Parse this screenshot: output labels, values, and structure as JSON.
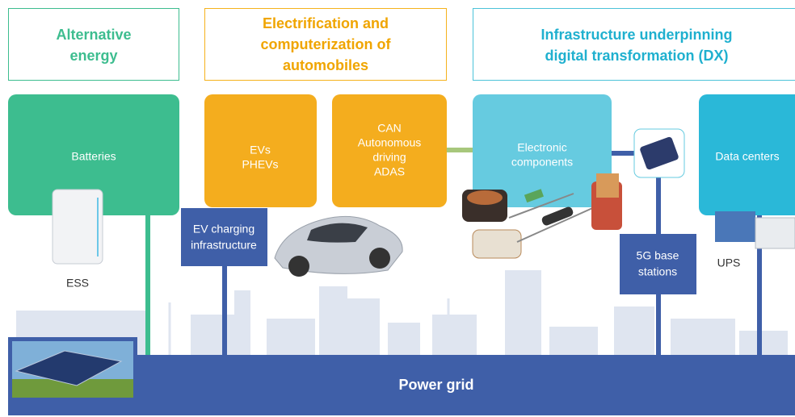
{
  "categories": [
    {
      "lines": [
        "Alternative",
        "energy"
      ]
    },
    {
      "lines": [
        "Electrification and",
        "computerization of",
        "automobiles"
      ]
    },
    {
      "lines": [
        "Infrastructure underpinning",
        "digital transformation (DX)"
      ]
    }
  ],
  "boxes": [
    {
      "lines": [
        "Batteries"
      ]
    },
    {
      "lines": [
        "EVs",
        "PHEVs"
      ]
    },
    {
      "lines": [
        "CAN",
        "Autonomous",
        "driving",
        "ADAS"
      ]
    },
    {
      "lines": [
        "Electronic",
        "components"
      ]
    },
    {
      "lines": [
        "Data centers"
      ]
    }
  ],
  "small_boxes": [
    {
      "lines": [
        "EV charging",
        "infrastructure"
      ]
    },
    {
      "lines": [
        "5G base",
        "stations"
      ]
    }
  ],
  "labels": [
    "ESS",
    "UPS"
  ],
  "power_grid": "Power grid"
}
